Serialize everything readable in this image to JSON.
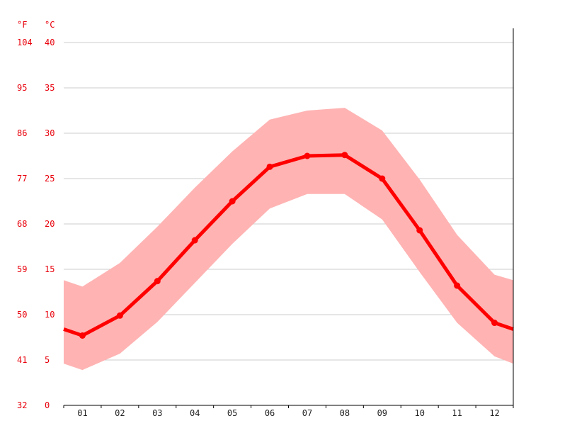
{
  "chart_data": {
    "type": "line",
    "title": "",
    "xlabel": "",
    "ylabel": "",
    "unit_f": "°F",
    "unit_c": "°C",
    "categories": [
      "01",
      "02",
      "03",
      "04",
      "05",
      "06",
      "07",
      "08",
      "09",
      "10",
      "11",
      "12"
    ],
    "y_ticks_c": [
      "0",
      "5",
      "10",
      "15",
      "20",
      "25",
      "30",
      "35",
      "40"
    ],
    "y_ticks_f": [
      "32",
      "41",
      "50",
      "59",
      "68",
      "77",
      "86",
      "95",
      "104"
    ],
    "ylim": [
      0,
      40
    ],
    "grid": true,
    "legend": "none",
    "colors": {
      "line": "#ff0000",
      "band": "#ffb3b3",
      "axis_text": "#e8000b"
    },
    "edge_values": {
      "start_avg": 8.4,
      "end_avg": 8.4,
      "start_high": 13.8,
      "end_high": 13.8,
      "start_low": 4.6,
      "end_low": 4.6
    },
    "series": [
      {
        "role": "avg",
        "values": [
          7.7,
          9.9,
          13.7,
          18.2,
          22.5,
          26.3,
          27.5,
          27.6,
          25.0,
          19.3,
          13.2,
          9.1
        ]
      },
      {
        "role": "high",
        "values": [
          13.1,
          15.7,
          19.7,
          24.0,
          28.0,
          31.5,
          32.5,
          32.8,
          30.3,
          24.9,
          18.8,
          14.4
        ]
      },
      {
        "role": "low",
        "values": [
          3.9,
          5.7,
          9.2,
          13.5,
          17.8,
          21.7,
          23.3,
          23.3,
          20.5,
          14.7,
          9.1,
          5.4
        ]
      }
    ]
  }
}
